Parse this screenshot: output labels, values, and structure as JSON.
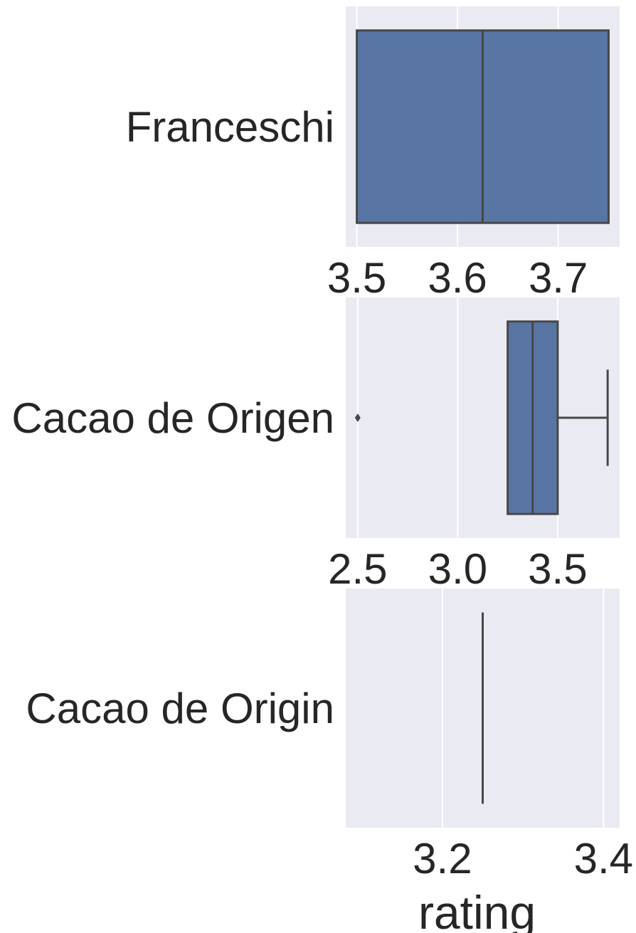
{
  "chart_data": [
    {
      "type": "box",
      "category": "Franceschi",
      "xticks": [
        3.5,
        3.6,
        3.7
      ],
      "xtick_labels": [
        "3.5",
        "3.6",
        "3.7"
      ],
      "xlim": [
        3.489,
        3.761
      ],
      "box": {
        "q1": 3.5,
        "median": 3.625,
        "q3": 3.75,
        "whisker_low": 3.5,
        "whisker_high": 3.75
      },
      "outliers": []
    },
    {
      "type": "box",
      "category": "Cacao de Origen",
      "xticks": [
        2.5,
        3.0,
        3.5
      ],
      "xtick_labels": [
        "2.5",
        "3.0",
        "3.5"
      ],
      "xlim": [
        2.44,
        3.81
      ],
      "box": {
        "q1": 3.25,
        "median": 3.375,
        "q3": 3.5,
        "whisker_low": 3.25,
        "whisker_high": 3.75
      },
      "outliers": [
        2.5
      ]
    },
    {
      "type": "box",
      "category": "Cacao de Origin",
      "xticks": [
        3.2,
        3.4
      ],
      "xtick_labels": [
        "3.2",
        "3.4"
      ],
      "xlim": [
        3.08,
        3.42
      ],
      "box": {
        "q1": 3.25,
        "median": 3.25,
        "q3": 3.25,
        "whisker_low": 3.25,
        "whisker_high": 3.25
      },
      "outliers": [],
      "xlabel": "rating"
    }
  ],
  "colors": {
    "plot_background": "#eaeaf2",
    "grid": "#ffffff",
    "box_fill": "#5875a4",
    "box_edge": "#474747",
    "text": "#262626"
  }
}
